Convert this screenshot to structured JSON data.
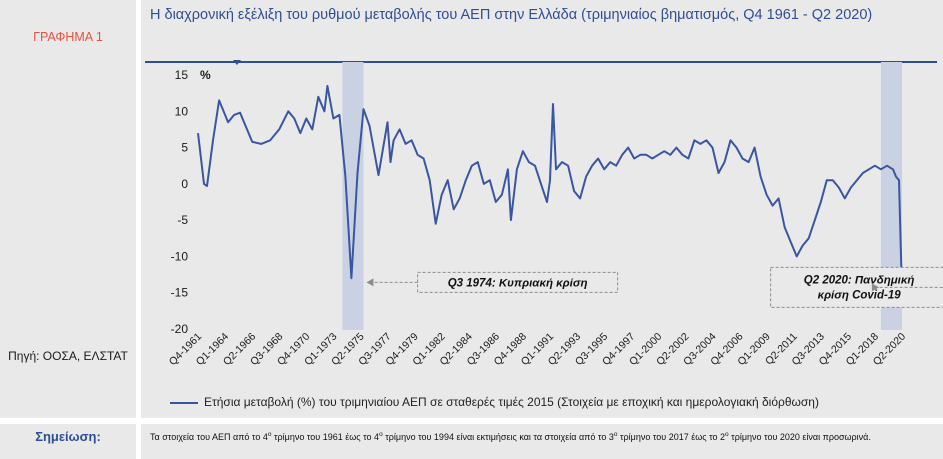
{
  "chart_label": "ΓΡΑΦΗΜΑ 1",
  "title": "Η διαχρονική εξέλιξη του ρυθμού μεταβολής του ΑΕΠ στην Ελλάδα (τριμηνιαίος βηματισμός, Q4 1961 - Q2 2020)",
  "source": "Πηγή: ΟΟΣΑ, ΕΛΣΤΑΤ",
  "note": {
    "label": "Σημείωση:",
    "part1": "Τα στοιχεία του ΑΕΠ από το 4",
    "sup1": "ο",
    "part2": " τρίμηνο του 1961 έως το 4",
    "sup2": "ο",
    "part3": " τρίμηνο του 1994 είναι εκτιμήσεις και τα στοιχεία από το 3",
    "sup3": "ο",
    "part4": " τρίμηνο του 2017 έως το 2",
    "sup4": "ο",
    "part5": " τρίμηνο του 2020 είναι προσωρινά."
  },
  "colors": {
    "line": "#3a56a0",
    "shade": "#c9d1e2",
    "title": "#2e4f91",
    "chart_label": "#e8523f",
    "panel": "#e9e9ea"
  },
  "chart_data": {
    "type": "line",
    "unit_label": "%",
    "ylim": [
      -20,
      15
    ],
    "yticks": [
      15,
      10,
      5,
      0,
      -5,
      -10,
      -15,
      -20
    ],
    "x_start": "Q4-1961",
    "x_end": "Q2-2020",
    "xtick_labels": [
      "Q4-1961",
      "Q1-1964",
      "Q2-1966",
      "Q3-1968",
      "Q4-1970",
      "Q1-1973",
      "Q2-1975",
      "Q3-1977",
      "Q4-1979",
      "Q1-1982",
      "Q2-1984",
      "Q3-1986",
      "Q4-1988",
      "Q1-1991",
      "Q2-1993",
      "Q3-1995",
      "Q4-1997",
      "Q1-2000",
      "Q2-2002",
      "Q3-2004",
      "Q4-2006",
      "Q1-2009",
      "Q2-2011",
      "Q3-2013",
      "Q4-2015",
      "Q1-2018",
      "Q2-2020"
    ],
    "grid": false,
    "legend_position": "bottom",
    "series": [
      {
        "name": "Ετήσια μεταβολή (%) του τριμηνιαίου ΑΕΠ σε σταθερές τιμές 2015 (Στοιχεία με εποχική και ημερολογιακή διόρθωση)",
        "points": [
          [
            "Q4-1961",
            7.0
          ],
          [
            "Q2-1962",
            0.0
          ],
          [
            "Q3-1962",
            -0.3
          ],
          [
            "Q1-1963",
            6.0
          ],
          [
            "Q3-1963",
            11.5
          ],
          [
            "Q2-1964",
            8.5
          ],
          [
            "Q4-1964",
            9.5
          ],
          [
            "Q2-1965",
            9.8
          ],
          [
            "Q2-1966",
            5.8
          ],
          [
            "Q1-1967",
            5.5
          ],
          [
            "Q4-1967",
            6.0
          ],
          [
            "Q3-1968",
            7.5
          ],
          [
            "Q2-1969",
            10.0
          ],
          [
            "Q4-1969",
            9.0
          ],
          [
            "Q2-1970",
            7.0
          ],
          [
            "Q4-1970",
            9.0
          ],
          [
            "Q2-1971",
            7.5
          ],
          [
            "Q4-1971",
            12.0
          ],
          [
            "Q2-1972",
            10.0
          ],
          [
            "Q3-1972",
            13.5
          ],
          [
            "Q1-1973",
            9.0
          ],
          [
            "Q3-1973",
            9.5
          ],
          [
            "Q1-1974",
            1.0
          ],
          [
            "Q3-1974",
            -13.0
          ],
          [
            "Q1-1975",
            1.5
          ],
          [
            "Q3-1975",
            10.3
          ],
          [
            "Q1-1976",
            8.0
          ],
          [
            "Q4-1976",
            1.2
          ],
          [
            "Q3-1977",
            8.5
          ],
          [
            "Q4-1977",
            3.0
          ],
          [
            "Q1-1978",
            6.0
          ],
          [
            "Q3-1978",
            7.5
          ],
          [
            "Q1-1979",
            5.5
          ],
          [
            "Q3-1979",
            6.0
          ],
          [
            "Q1-1980",
            4.0
          ],
          [
            "Q3-1980",
            3.5
          ],
          [
            "Q1-1981",
            0.5
          ],
          [
            "Q3-1981",
            -5.5
          ],
          [
            "Q1-1982",
            -1.5
          ],
          [
            "Q3-1982",
            0.5
          ],
          [
            "Q1-1983",
            -3.5
          ],
          [
            "Q3-1983",
            -2.0
          ],
          [
            "Q1-1984",
            0.5
          ],
          [
            "Q3-1984",
            2.5
          ],
          [
            "Q1-1985",
            3.0
          ],
          [
            "Q3-1985",
            0.0
          ],
          [
            "Q1-1986",
            0.5
          ],
          [
            "Q3-1986",
            -2.5
          ],
          [
            "Q1-1987",
            -1.5
          ],
          [
            "Q3-1987",
            2.0
          ],
          [
            "Q4-1987",
            -5.0
          ],
          [
            "Q2-1988",
            2.0
          ],
          [
            "Q4-1988",
            4.5
          ],
          [
            "Q2-1989",
            3.0
          ],
          [
            "Q4-1989",
            2.5
          ],
          [
            "Q2-1990",
            0.0
          ],
          [
            "Q4-1990",
            -2.5
          ],
          [
            "Q1-1991",
            0.5
          ],
          [
            "Q2-1991",
            11.0
          ],
          [
            "Q3-1991",
            2.0
          ],
          [
            "Q1-1992",
            3.0
          ],
          [
            "Q3-1992",
            2.5
          ],
          [
            "Q1-1993",
            -1.0
          ],
          [
            "Q3-1993",
            -2.0
          ],
          [
            "Q1-1994",
            1.0
          ],
          [
            "Q3-1994",
            2.5
          ],
          [
            "Q1-1995",
            3.5
          ],
          [
            "Q3-1995",
            2.0
          ],
          [
            "Q1-1996",
            3.0
          ],
          [
            "Q3-1996",
            2.5
          ],
          [
            "Q1-1997",
            4.0
          ],
          [
            "Q3-1997",
            5.0
          ],
          [
            "Q1-1998",
            3.5
          ],
          [
            "Q3-1998",
            4.0
          ],
          [
            "Q1-1999",
            4.0
          ],
          [
            "Q3-1999",
            3.5
          ],
          [
            "Q1-2000",
            4.0
          ],
          [
            "Q3-2000",
            4.5
          ],
          [
            "Q1-2001",
            4.0
          ],
          [
            "Q3-2001",
            5.0
          ],
          [
            "Q1-2002",
            4.0
          ],
          [
            "Q3-2002",
            3.5
          ],
          [
            "Q1-2003",
            6.0
          ],
          [
            "Q3-2003",
            5.5
          ],
          [
            "Q1-2004",
            6.0
          ],
          [
            "Q3-2004",
            5.0
          ],
          [
            "Q1-2005",
            1.5
          ],
          [
            "Q3-2005",
            3.0
          ],
          [
            "Q1-2006",
            6.0
          ],
          [
            "Q3-2006",
            5.0
          ],
          [
            "Q1-2007",
            3.5
          ],
          [
            "Q3-2007",
            3.0
          ],
          [
            "Q1-2008",
            5.0
          ],
          [
            "Q3-2008",
            1.0
          ],
          [
            "Q1-2009",
            -1.5
          ],
          [
            "Q3-2009",
            -3.0
          ],
          [
            "Q1-2010",
            -2.0
          ],
          [
            "Q3-2010",
            -6.0
          ],
          [
            "Q1-2011",
            -8.0
          ],
          [
            "Q3-2011",
            -10.0
          ],
          [
            "Q1-2012",
            -8.5
          ],
          [
            "Q3-2012",
            -7.5
          ],
          [
            "Q1-2013",
            -5.0
          ],
          [
            "Q3-2013",
            -2.5
          ],
          [
            "Q1-2014",
            0.5
          ],
          [
            "Q3-2014",
            0.5
          ],
          [
            "Q1-2015",
            -0.5
          ],
          [
            "Q3-2015",
            -2.0
          ],
          [
            "Q1-2016",
            -0.5
          ],
          [
            "Q3-2016",
            0.5
          ],
          [
            "Q1-2017",
            1.5
          ],
          [
            "Q3-2017",
            2.0
          ],
          [
            "Q1-2018",
            2.5
          ],
          [
            "Q3-2018",
            2.0
          ],
          [
            "Q1-2019",
            2.5
          ],
          [
            "Q3-2019",
            2.0
          ],
          [
            "Q4-2019",
            1.0
          ],
          [
            "Q1-2020",
            0.5
          ],
          [
            "Q2-2020",
            -15.2
          ]
        ]
      }
    ],
    "shaded_periods": [
      [
        "Q4-1973",
        "Q3-1975"
      ],
      [
        "Q3-2018",
        "Q2-2020"
      ]
    ],
    "annotations": [
      {
        "text": "Q3 1974:  Κυπριακή κρίση"
      },
      {
        "text": "Q2 2020: Πανδημική κρίση Covid-19"
      }
    ]
  }
}
